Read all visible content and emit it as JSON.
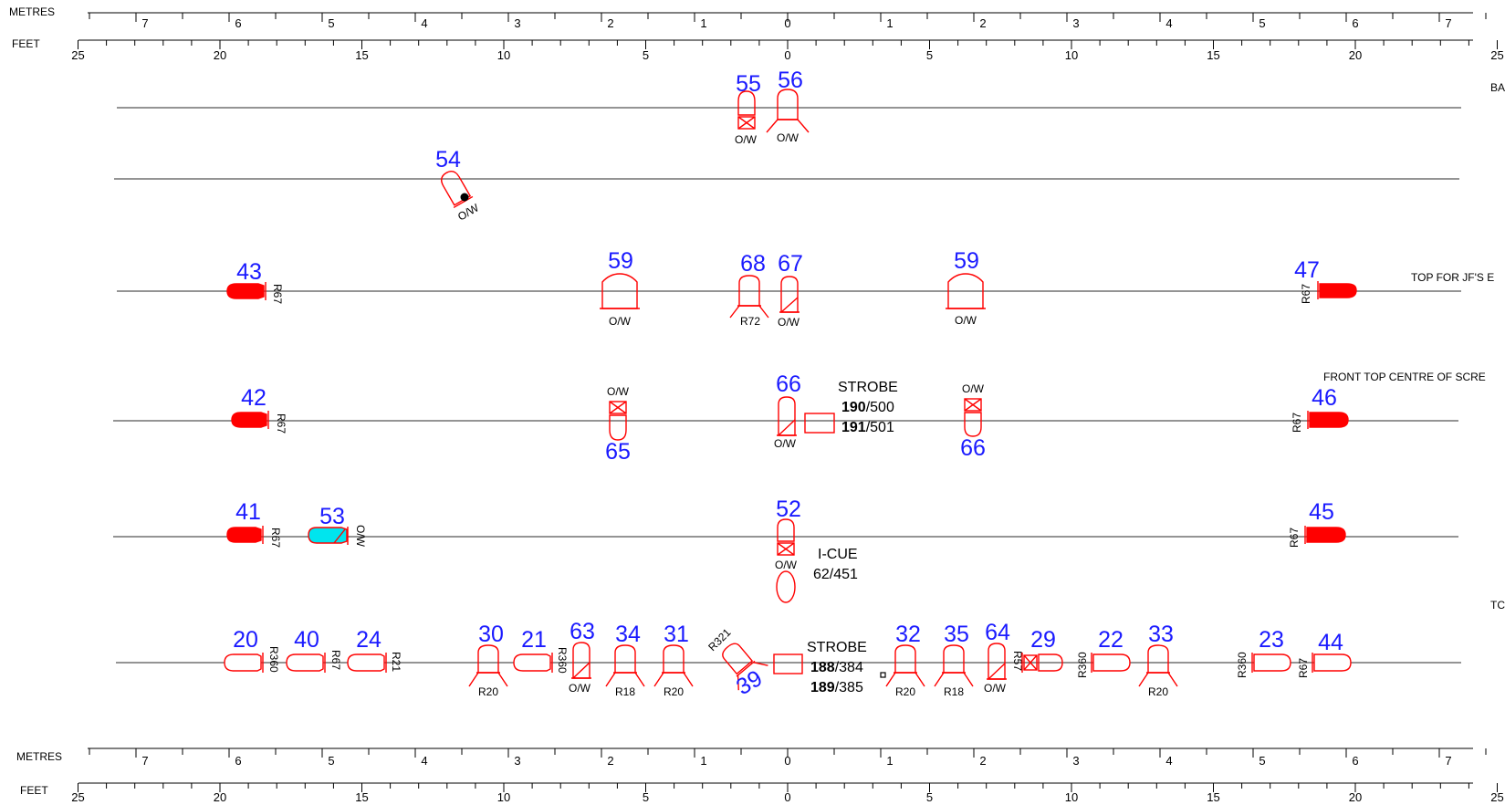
{
  "rulers": {
    "metres_label": "METRES",
    "feet_label": "FEET",
    "metre_ticks": [
      "7",
      "6",
      "5",
      "4",
      "3",
      "2",
      "1",
      "0",
      "1",
      "2",
      "3",
      "4",
      "5",
      "6",
      "7"
    ],
    "feet_ticks": [
      "25",
      "20",
      "15",
      "10",
      "5",
      "0",
      "5",
      "10",
      "15",
      "20",
      "25"
    ]
  },
  "bars": [
    {
      "label": "BA"
    },
    {
      "label": ""
    },
    {
      "label": "TOP FOR JF'S E"
    },
    {
      "label": "FRONT TOP CENTRE OF SCRE"
    },
    {
      "label": ""
    },
    {
      "label": "TC"
    }
  ],
  "fixtures": [
    {
      "num": "55",
      "note": "O/W"
    },
    {
      "num": "56",
      "note": "O/W"
    },
    {
      "num": "54",
      "note": "O/W"
    },
    {
      "num": "43",
      "note": "R67"
    },
    {
      "num": "59",
      "note": "O/W"
    },
    {
      "num": "68",
      "note": "R72"
    },
    {
      "num": "67",
      "note": "O/W"
    },
    {
      "num": "59",
      "note": "O/W"
    },
    {
      "num": "47",
      "note": "R67"
    },
    {
      "num": "42",
      "note": "R67"
    },
    {
      "num": "65",
      "note": "O/W"
    },
    {
      "num": "66",
      "note": "O/W"
    },
    {
      "num": "66",
      "note": "O/W"
    },
    {
      "num": "46",
      "note": "R67"
    },
    {
      "num": "41",
      "note": "R67"
    },
    {
      "num": "53",
      "note": "O/W"
    },
    {
      "num": "52",
      "note": "O/W"
    },
    {
      "num": "45",
      "note": "R67"
    },
    {
      "num": "20",
      "note": "R360"
    },
    {
      "num": "40",
      "note": "R67"
    },
    {
      "num": "24",
      "note": "R21"
    },
    {
      "num": "30",
      "note": "R20"
    },
    {
      "num": "21",
      "note": "R360"
    },
    {
      "num": "63",
      "note": "O/W"
    },
    {
      "num": "34",
      "note": "R18"
    },
    {
      "num": "31",
      "note": "R20"
    },
    {
      "num": "39",
      "note": "R321"
    },
    {
      "num": "32",
      "note": "R20"
    },
    {
      "num": "35",
      "note": "R18"
    },
    {
      "num": "64",
      "note": "O/W"
    },
    {
      "num": "29",
      "note": "R57"
    },
    {
      "num": "22",
      "note": "R360"
    },
    {
      "num": "33",
      "note": "R20"
    },
    {
      "num": "23",
      "note": "R360"
    },
    {
      "num": "44",
      "note": "R67"
    }
  ],
  "devices": {
    "strobe1": {
      "title": "STROBE",
      "l1a": "190",
      "l1b": "/500",
      "l2a": "191",
      "l2b": "/501"
    },
    "icue": {
      "title": "I-CUE",
      "line": "62/451"
    },
    "strobe2": {
      "title": "STROBE",
      "l1a": "188",
      "l1b": "/384",
      "l2a": "189",
      "l2b": "/385"
    }
  },
  "colors": {
    "fixture": "#ff0000",
    "number": "#1a1aff",
    "filled": "#ff0000",
    "cyan": "#00e5ee",
    "bar": "#555555",
    "ink": "#000000"
  }
}
